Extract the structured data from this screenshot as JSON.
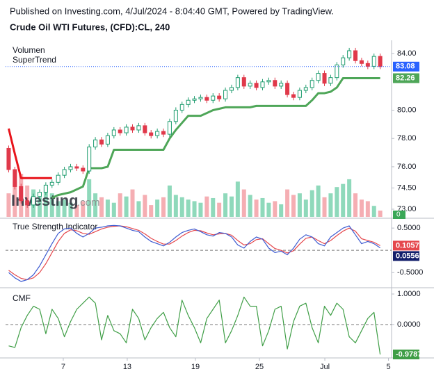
{
  "chart_data": [
    {
      "type": "candlestick",
      "source": "Published on Investing.com, 4/Jul/2024 - 8:04:40 GMT, Powered by TradingView.",
      "title": "Crude Oil WTI Futures, (CFD):CL, 240",
      "watermark": [
        "Investing",
        ".com"
      ],
      "x": [
        0,
        1,
        2,
        3,
        4,
        5,
        6,
        7,
        8,
        9,
        10,
        11,
        12,
        13,
        14,
        15,
        16,
        17,
        18,
        19,
        20,
        21,
        22,
        23,
        24,
        25,
        26,
        27,
        28,
        29,
        30,
        31,
        32,
        33,
        34,
        35,
        36,
        37,
        38,
        39,
        40,
        41,
        42,
        43,
        44,
        45,
        46,
        47,
        48,
        49,
        50,
        51,
        52,
        53,
        54,
        55,
        56,
        57,
        58,
        59,
        60
      ],
      "xlim": [
        -0.5,
        61.5
      ],
      "open": [
        77.3,
        75.8,
        74.6,
        73.6,
        73.3,
        73.9,
        74.2,
        74.7,
        74.9,
        75.4,
        75.8,
        76.0,
        75.9,
        75.7,
        77.4,
        77.9,
        77.6,
        78.2,
        78.6,
        78.4,
        78.8,
        78.6,
        78.9,
        78.4,
        78.2,
        78.5,
        78.3,
        79.2,
        80.0,
        80.4,
        80.7,
        80.8,
        80.9,
        80.7,
        81.0,
        80.8,
        81.4,
        81.6,
        82.3,
        81.7,
        81.9,
        81.6,
        82.0,
        82.1,
        81.7,
        81.9,
        81.1,
        80.9,
        81.4,
        81.6,
        82.1,
        82.6,
        81.9,
        82.3,
        83.2,
        83.7,
        84.2,
        83.5,
        83.3,
        83.1,
        83.8
      ],
      "high": [
        77.5,
        76.0,
        74.8,
        73.8,
        74.1,
        74.4,
        74.9,
        75.1,
        75.6,
        76.0,
        76.2,
        76.2,
        76.1,
        77.6,
        78.1,
        78.1,
        78.4,
        78.8,
        78.8,
        79.0,
        79.0,
        79.1,
        79.1,
        78.6,
        78.7,
        78.7,
        79.4,
        80.2,
        80.6,
        80.9,
        81.0,
        81.1,
        81.1,
        81.2,
        81.2,
        81.6,
        81.8,
        82.5,
        82.5,
        82.1,
        82.1,
        82.2,
        82.3,
        82.3,
        82.1,
        82.1,
        81.3,
        81.6,
        81.8,
        82.3,
        82.8,
        82.8,
        82.5,
        83.4,
        83.9,
        84.4,
        84.4,
        83.7,
        83.5,
        84.0,
        84.0
      ],
      "low": [
        75.6,
        74.4,
        73.4,
        73.1,
        73.1,
        73.7,
        74.0,
        74.5,
        74.7,
        75.2,
        75.6,
        75.7,
        75.5,
        75.5,
        77.2,
        77.4,
        77.4,
        78.0,
        78.2,
        78.2,
        78.4,
        78.4,
        78.2,
        78.0,
        78.0,
        78.1,
        78.1,
        79.0,
        79.8,
        80.2,
        80.5,
        80.6,
        80.5,
        80.5,
        80.6,
        80.6,
        81.2,
        81.4,
        81.5,
        81.5,
        81.4,
        81.4,
        81.8,
        81.5,
        81.5,
        80.9,
        80.7,
        80.7,
        81.2,
        81.4,
        81.9,
        81.7,
        81.7,
        82.1,
        83.0,
        83.5,
        83.3,
        83.1,
        82.9,
        82.9,
        82.9
      ],
      "close": [
        75.8,
        74.6,
        73.6,
        73.3,
        73.9,
        74.2,
        74.7,
        74.9,
        75.4,
        75.8,
        76.0,
        75.9,
        75.7,
        77.4,
        77.9,
        77.6,
        78.2,
        78.6,
        78.4,
        78.8,
        78.6,
        78.9,
        78.4,
        78.2,
        78.5,
        78.3,
        79.2,
        80.0,
        80.4,
        80.7,
        80.8,
        80.9,
        80.7,
        81.0,
        80.8,
        81.4,
        81.6,
        82.3,
        81.7,
        81.9,
        81.6,
        82.0,
        82.1,
        81.7,
        81.9,
        81.1,
        80.9,
        81.4,
        81.6,
        82.1,
        82.6,
        81.9,
        82.3,
        83.2,
        83.7,
        84.2,
        83.5,
        83.3,
        83.1,
        83.8,
        83.08
      ],
      "up_color": "#1e9c6e",
      "down_color": "#e0394a",
      "last_color": "#2962ff",
      "volume": {
        "name": "Volumen",
        "up_color": "#8fd9bb",
        "down_color": "#f5aeb3",
        "yticks": [
          0
        ],
        "values": [
          30,
          45,
          55,
          40,
          35,
          25,
          38,
          30,
          20,
          22,
          18,
          15,
          20,
          48,
          30,
          25,
          22,
          18,
          30,
          26,
          35,
          20,
          28,
          15,
          22,
          25,
          40,
          28,
          25,
          22,
          20,
          18,
          26,
          24,
          18,
          30,
          26,
          45,
          35,
          28,
          22,
          24,
          18,
          20,
          16,
          35,
          28,
          30,
          22,
          34,
          40,
          25,
          30,
          38,
          42,
          48,
          30,
          22,
          20,
          14,
          8
        ]
      },
      "supertrend": {
        "name": "SuperTrend",
        "up_color": "#4ea658",
        "down_color": "#e8141b",
        "down_values": [
          78.7,
          76.9,
          75.2,
          75.2,
          75.2,
          75.2,
          75.2,
          75.2,
          null,
          null,
          null,
          null,
          null,
          null,
          null,
          null,
          null,
          null,
          null,
          null,
          null,
          null,
          null,
          null,
          null,
          null,
          null,
          null,
          null,
          null,
          null,
          null,
          null,
          null,
          null,
          null,
          null,
          null,
          null,
          null,
          null,
          null,
          null,
          null,
          null,
          null,
          null,
          null,
          null,
          null,
          null,
          null,
          null,
          null,
          null,
          null,
          null,
          null,
          null,
          null,
          null
        ],
        "up_values": [
          null,
          null,
          null,
          null,
          null,
          null,
          null,
          73.8,
          74.0,
          74.1,
          74.2,
          74.4,
          74.6,
          75.9,
          75.9,
          75.9,
          76.0,
          77.2,
          77.2,
          77.2,
          77.2,
          77.2,
          77.2,
          77.2,
          77.2,
          77.2,
          78.0,
          78.6,
          79.1,
          79.6,
          79.6,
          79.6,
          79.8,
          80.0,
          80.1,
          80.2,
          80.2,
          80.2,
          80.2,
          80.2,
          80.3,
          80.3,
          80.3,
          80.3,
          80.3,
          80.3,
          80.3,
          80.3,
          80.3,
          80.7,
          81.2,
          81.2,
          81.3,
          81.6,
          82.26,
          82.26,
          82.26,
          82.26,
          82.26,
          82.26,
          82.26
        ]
      },
      "ylim": [
        72.46,
        84.74
      ],
      "yticks": [
        {
          "value": 73,
          "label": "73.00"
        },
        {
          "value": 74.5,
          "label": "74.50"
        },
        {
          "value": 76,
          "label": "76.00"
        },
        {
          "value": 78,
          "label": "78.00"
        },
        {
          "value": 80,
          "label": "80.00"
        },
        {
          "value": 84,
          "label": "84.00"
        }
      ]
    },
    {
      "type": "line",
      "title": "True Strength Indicator",
      "x": [
        0,
        1,
        2,
        3,
        4,
        5,
        6,
        7,
        8,
        9,
        10,
        11,
        12,
        13,
        14,
        15,
        16,
        17,
        18,
        19,
        20,
        21,
        22,
        23,
        24,
        25,
        26,
        27,
        28,
        29,
        30,
        31,
        32,
        33,
        34,
        35,
        36,
        37,
        38,
        39,
        40,
        41,
        42,
        43,
        44,
        45,
        46,
        47,
        48,
        49,
        50,
        51,
        52,
        53,
        54,
        55,
        56,
        57,
        58,
        59,
        60
      ],
      "xlim": [
        -0.5,
        61.5
      ],
      "series": [
        {
          "color": "#e5484d",
          "values": [
            -0.45,
            -0.55,
            -0.63,
            -0.66,
            -0.62,
            -0.5,
            -0.3,
            -0.05,
            0.2,
            0.38,
            0.46,
            0.44,
            0.38,
            0.36,
            0.42,
            0.48,
            0.52,
            0.54,
            0.55,
            0.53,
            0.49,
            0.45,
            0.37,
            0.27,
            0.2,
            0.14,
            0.14,
            0.22,
            0.32,
            0.4,
            0.45,
            0.44,
            0.39,
            0.35,
            0.37,
            0.38,
            0.34,
            0.22,
            0.12,
            0.15,
            0.24,
            0.26,
            0.15,
            0.04,
            0,
            -0.06,
            -0.01,
            0.14,
            0.27,
            0.3,
            0.22,
            0.15,
            0.22,
            0.33,
            0.43,
            0.5,
            0.43,
            0.26,
            0.22,
            0.18,
            0.1057
          ]
        },
        {
          "color": "#3d5bd1",
          "box_color": "#131e6b",
          "values": [
            -0.5,
            -0.62,
            -0.7,
            -0.66,
            -0.55,
            -0.35,
            -0.1,
            0.15,
            0.38,
            0.48,
            0.5,
            0.38,
            0.3,
            0.38,
            0.5,
            0.52,
            0.55,
            0.56,
            0.55,
            0.5,
            0.45,
            0.42,
            0.3,
            0.2,
            0.15,
            0.1,
            0.18,
            0.3,
            0.4,
            0.45,
            0.48,
            0.42,
            0.35,
            0.32,
            0.4,
            0.38,
            0.3,
            0.12,
            0.05,
            0.2,
            0.3,
            0.25,
            0.05,
            -0.05,
            -0.02,
            -0.1,
            0.05,
            0.25,
            0.35,
            0.3,
            0.15,
            0.1,
            0.3,
            0.4,
            0.5,
            0.55,
            0.35,
            0.15,
            0.2,
            0.15,
            0.0556
          ]
        }
      ],
      "hline": 0,
      "ylim": [
        -0.81,
        0.69
      ],
      "yticks": [
        {
          "value": -0.5,
          "label": "-0.5000"
        },
        {
          "value": 0.5,
          "label": "0.5000"
        }
      ]
    },
    {
      "type": "line",
      "title": "CMF",
      "x": [
        0,
        1,
        2,
        3,
        4,
        5,
        6,
        7,
        8,
        9,
        10,
        11,
        12,
        13,
        14,
        15,
        16,
        17,
        18,
        19,
        20,
        21,
        22,
        23,
        24,
        25,
        26,
        27,
        28,
        29,
        30,
        31,
        32,
        33,
        34,
        35,
        36,
        37,
        38,
        39,
        40,
        41,
        42,
        43,
        44,
        45,
        46,
        47,
        48,
        49,
        50,
        51,
        52,
        53,
        54,
        55,
        56,
        57,
        58,
        59,
        60
      ],
      "xlim": [
        -0.5,
        61.5
      ],
      "series": [
        {
          "color": "#3f9e46",
          "values": [
            -0.7,
            -0.75,
            -0.1,
            0.3,
            0.6,
            0.5,
            -0.3,
            0.5,
            0.2,
            -0.4,
            0.1,
            0.5,
            0.7,
            0.9,
            0.7,
            -0.5,
            0.3,
            -0.2,
            -0.3,
            -0.6,
            0.5,
            0.2,
            -0.5,
            -0.1,
            0.2,
            0.4,
            -0.1,
            -0.4,
            0.8,
            0.3,
            -0.1,
            -0.6,
            0.2,
            0.5,
            0.8,
            -0.6,
            -0.2,
            0.3,
            0.9,
            0.6,
            0.6,
            -0.7,
            -0.2,
            0.5,
            0.6,
            -0.8,
            0.1,
            0.6,
            0.7,
            -0.1,
            -0.6,
            0.6,
            0.3,
            0.7,
            0.5,
            -0.4,
            -0.6,
            -0.2,
            0.2,
            0.4,
            -0.9787
          ]
        }
      ],
      "hline": 0,
      "ylim": [
        -1.07,
        1.16
      ],
      "yticks": [
        {
          "value": 0,
          "label": "0.0000"
        },
        {
          "value": 1,
          "label": "1.0000"
        }
      ],
      "xticks": [
        {
          "value": 8.82,
          "label": "7"
        },
        {
          "value": 19.15,
          "label": "13"
        },
        {
          "value": 30.16,
          "label": "19"
        },
        {
          "value": 40.5,
          "label": "25"
        },
        {
          "value": 51.06,
          "label": "Jul"
        },
        {
          "value": 61.34,
          "label": "5"
        }
      ]
    }
  ]
}
